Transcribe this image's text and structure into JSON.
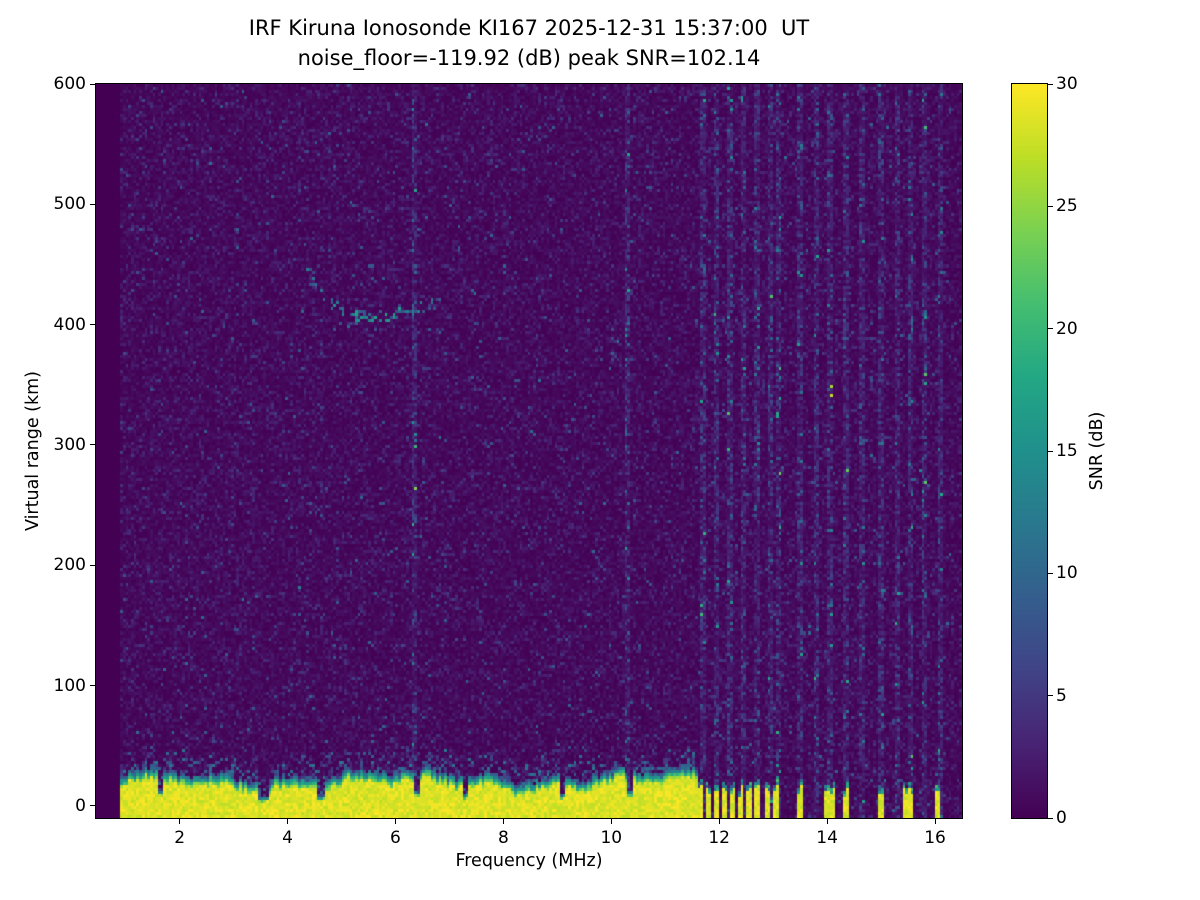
{
  "figure": {
    "background": "#ffffff"
  },
  "chart_data": {
    "type": "heatmap",
    "title": "IRF Kiruna Ionosonde KI167 2025-12-31 15:37:00  UT",
    "subtitle": "noise_floor=-119.92 (dB) peak SNR=102.14",
    "xlabel": "Frequency (MHz)",
    "ylabel": "Virtual range (km)",
    "x_axis": {
      "min": 0.45,
      "max": 16.5,
      "ticks": [
        2,
        4,
        6,
        8,
        10,
        12,
        14,
        16
      ]
    },
    "y_axis": {
      "min": -10,
      "max": 600,
      "ticks": [
        0,
        100,
        200,
        300,
        400,
        500,
        600
      ]
    },
    "data_freq_range_mhz": [
      0.9,
      16.5
    ],
    "colorbar": {
      "label": "SNR (dB)",
      "min": 0,
      "max": 30,
      "ticks": [
        0,
        5,
        10,
        15,
        20,
        25,
        30
      ],
      "colormap": "viridis",
      "colormap_stops": [
        [
          0.0,
          68,
          1,
          84
        ],
        [
          0.1,
          72,
          35,
          116
        ],
        [
          0.2,
          64,
          67,
          135
        ],
        [
          0.3,
          52,
          94,
          141
        ],
        [
          0.4,
          41,
          120,
          142
        ],
        [
          0.5,
          32,
          144,
          140
        ],
        [
          0.6,
          34,
          167,
          132
        ],
        [
          0.7,
          68,
          190,
          112
        ],
        [
          0.8,
          122,
          209,
          81
        ],
        [
          0.9,
          189,
          222,
          38
        ],
        [
          1.0,
          253,
          231,
          37
        ]
      ]
    },
    "features": {
      "noise_floor_db": -119.92,
      "peak_snr_db": 102.14,
      "background_noise_mean_snr_db": 1.1,
      "ground_echo_band": {
        "freq_range_mhz": [
          0.9,
          11.6
        ],
        "solid_top_km_mean": 24,
        "fringe_top_km": 55,
        "snr_db": 30
      },
      "band_notch_freqs_mhz": [
        1.65,
        3.5,
        3.6,
        4.62,
        6.4,
        7.3,
        9.1,
        10.35
      ],
      "sparse_bar_freqs_mhz": [
        11.65,
        11.8,
        11.95,
        12.1,
        12.25,
        12.4,
        12.55,
        12.72,
        12.9,
        13.05,
        13.5,
        14.0,
        14.1,
        14.35,
        15.0,
        15.45,
        15.55,
        16.05
      ],
      "rfi_stripe_freqs_mhz": [
        6.35,
        10.3,
        11.7,
        11.95,
        12.2,
        12.45,
        12.7,
        12.95,
        13.1,
        13.5,
        13.8,
        14.05,
        14.35,
        14.65,
        15.0,
        15.3,
        15.55,
        15.8,
        16.1
      ],
      "ionospheric_echo": {
        "freq_range_mhz": [
          4.35,
          7.05
        ],
        "min_range_km": 407,
        "range_at_4_4_mhz_km": 440,
        "range_at_7_mhz_km": 422,
        "peak_snr_db": 18
      }
    },
    "seed": 167
  }
}
